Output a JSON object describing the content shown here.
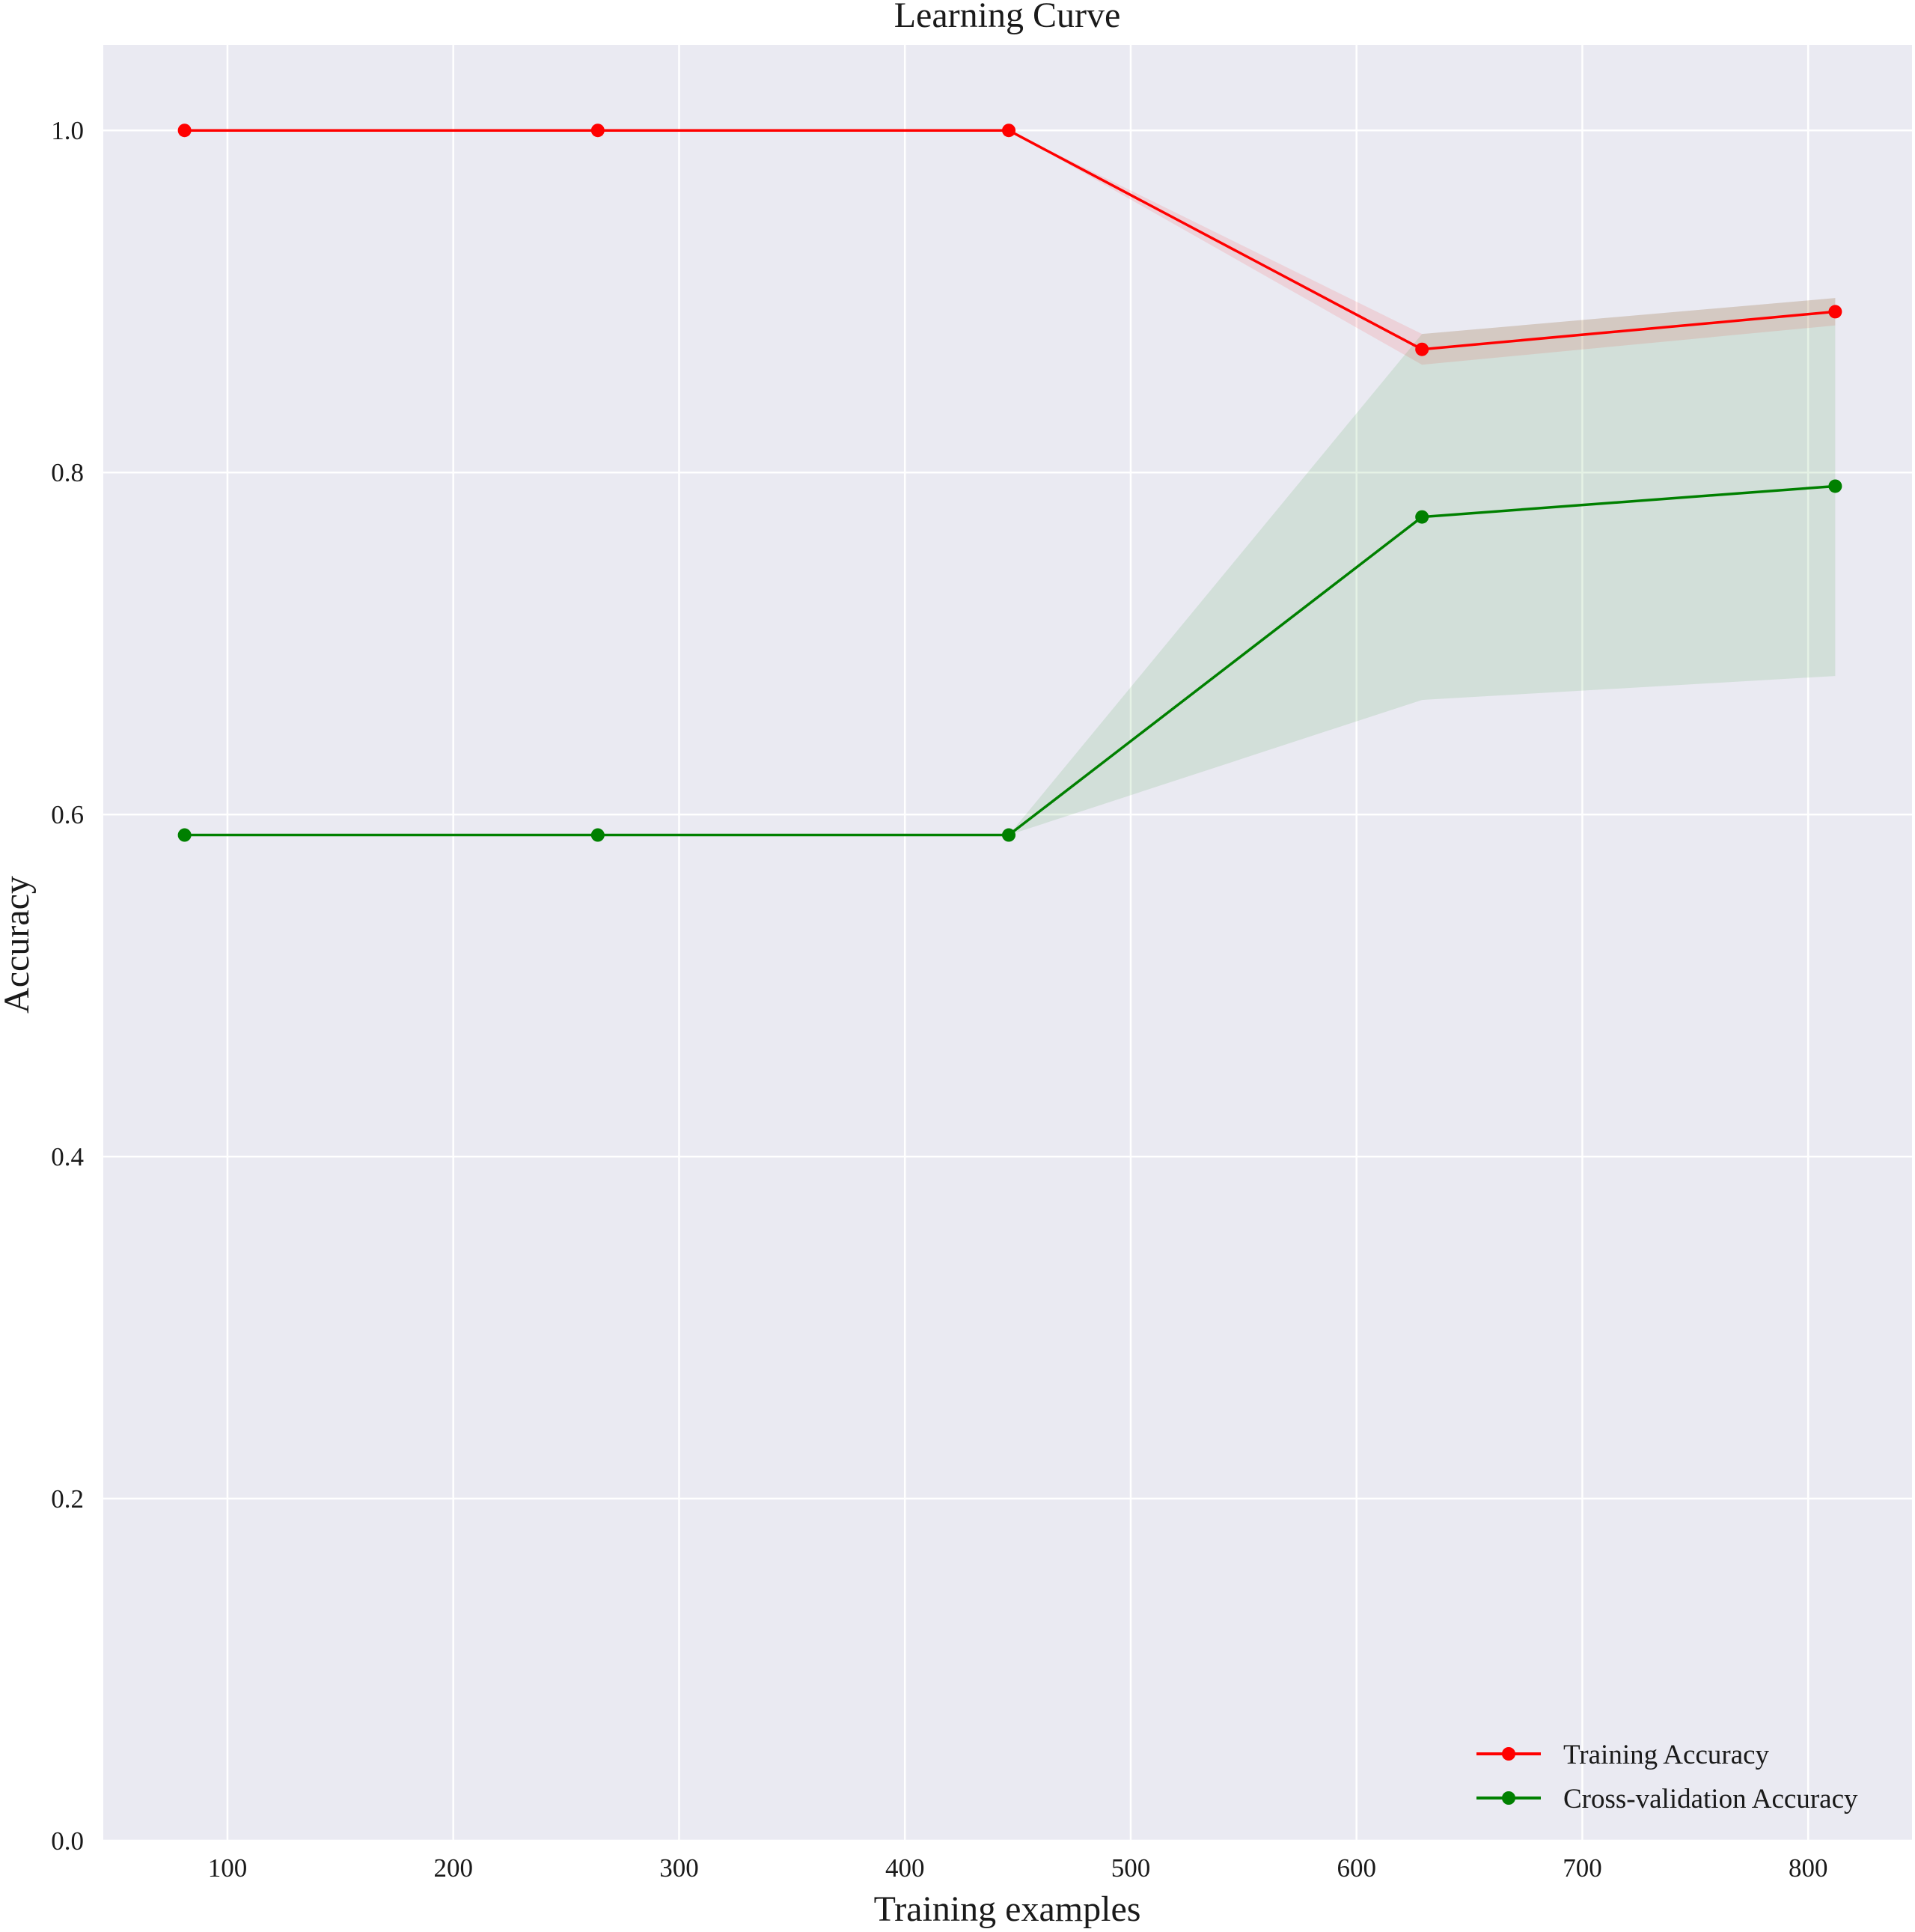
{
  "chart_data": {
    "type": "line",
    "title": "Learning Curve",
    "xlabel": "Training examples",
    "ylabel": "Accuracy",
    "xlim": [
      45,
      846
    ],
    "ylim": [
      0.0,
      1.05
    ],
    "xticks": [
      100,
      200,
      300,
      400,
      500,
      600,
      700,
      800
    ],
    "xtick_labels": [
      "100",
      "200",
      "300",
      "400",
      "500",
      "600",
      "700",
      "800"
    ],
    "yticks": [
      0.0,
      0.2,
      0.4,
      0.6,
      0.8,
      1.0
    ],
    "ytick_labels": [
      "0.0",
      "0.2",
      "0.4",
      "0.6",
      "0.8",
      "1.0"
    ],
    "grid": true,
    "legend_position": "lower-right",
    "background_color": "#eaeaf2",
    "grid_color": "#ffffff",
    "x": [
      81,
      264,
      446,
      629,
      812
    ],
    "series": [
      {
        "name": "Training Accuracy",
        "color": "#ff0000",
        "band_color": "#ff0000",
        "values": [
          1.0,
          1.0,
          1.0,
          0.872,
          0.894
        ],
        "lower": [
          1.0,
          1.0,
          1.0,
          0.863,
          0.886
        ],
        "upper": [
          1.0,
          1.0,
          1.0,
          0.881,
          0.902
        ]
      },
      {
        "name": "Cross-validation Accuracy",
        "color": "#008000",
        "band_color": "#008000",
        "values": [
          0.588,
          0.588,
          0.588,
          0.774,
          0.792
        ],
        "lower": [
          0.588,
          0.588,
          0.588,
          0.667,
          0.681
        ],
        "upper": [
          0.588,
          0.588,
          0.588,
          0.881,
          0.902
        ]
      }
    ]
  }
}
